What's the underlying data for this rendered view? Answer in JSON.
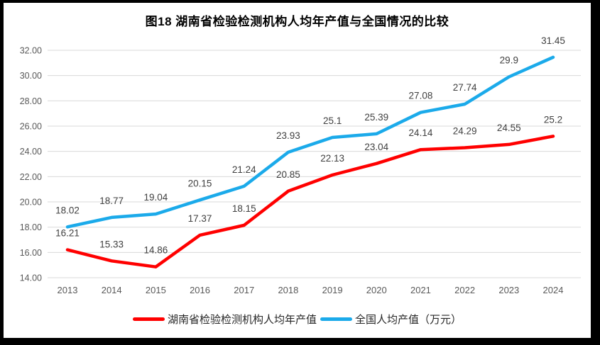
{
  "chart_data": {
    "type": "line",
    "title": "图18 湖南省检验检测机构人均年产值与全国情况的比较",
    "categories": [
      "2013",
      "2014",
      "2015",
      "2016",
      "2017",
      "2018",
      "2019",
      "2020",
      "2021",
      "2022",
      "2023",
      "2024"
    ],
    "series": [
      {
        "name": "湖南省检验检测机构人均年产值",
        "color": "#FF0000",
        "values": [
          16.21,
          15.33,
          14.86,
          17.37,
          18.15,
          20.85,
          22.13,
          23.04,
          24.14,
          24.29,
          24.55,
          25.2
        ]
      },
      {
        "name": "全国人均产值（万元）",
        "color": "#1BAAEA",
        "values": [
          18.02,
          18.77,
          19.04,
          20.15,
          21.24,
          23.93,
          25.1,
          25.39,
          27.08,
          27.74,
          29.9,
          31.45
        ]
      }
    ],
    "ylim": [
      14,
      32
    ],
    "ytick_values": [
      14,
      16,
      18,
      20,
      22,
      24,
      26,
      28,
      30,
      32
    ],
    "ytick_labels": [
      "14.00",
      "16.00",
      "18.00",
      "20.00",
      "22.00",
      "24.00",
      "26.00",
      "28.00",
      "30.00",
      "32.00"
    ],
    "xlabel": "",
    "ylabel": "",
    "grid": "horizontal",
    "gridline_color": "#D9D9D9",
    "axis_text_color": "#595959",
    "data_label_color": "#404040",
    "legend_position": "bottom",
    "data_labels_shown": true
  }
}
